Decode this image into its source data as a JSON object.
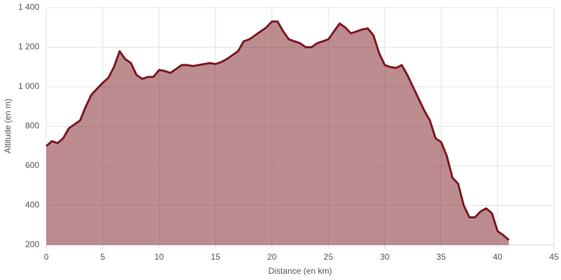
{
  "chart_data": {
    "type": "area",
    "x_label": "Distance (en km)",
    "y_label": "Altitude (en m)",
    "x": [
      0,
      0.5,
      1,
      1.5,
      2,
      2.5,
      3,
      3.5,
      4,
      4.5,
      5,
      5.5,
      6,
      6.5,
      7,
      7.5,
      8,
      8.5,
      9,
      9.5,
      10,
      10.5,
      11,
      11.5,
      12,
      12.5,
      13,
      13.5,
      14,
      14.5,
      15,
      15.5,
      16,
      16.5,
      17,
      17.5,
      18,
      18.5,
      19,
      19.5,
      20,
      20.5,
      21,
      21.5,
      22,
      22.5,
      23,
      23.5,
      24,
      24.5,
      25,
      25.5,
      26,
      26.5,
      27,
      27.5,
      28,
      28.5,
      29,
      29.5,
      30,
      30.5,
      31,
      31.5,
      32,
      32.5,
      33,
      33.5,
      34,
      34.5,
      35,
      35.5,
      36,
      36.5,
      37,
      37.5,
      38,
      38.5,
      39,
      39.5,
      40,
      40.5,
      41
    ],
    "series": [
      {
        "name": "Altitude",
        "color": "#7b1a22",
        "values": [
          700,
          725,
          715,
          740,
          790,
          810,
          830,
          900,
          960,
          990,
          1020,
          1045,
          1100,
          1180,
          1140,
          1120,
          1060,
          1040,
          1050,
          1050,
          1085,
          1080,
          1070,
          1090,
          1110,
          1110,
          1105,
          1110,
          1115,
          1120,
          1115,
          1125,
          1140,
          1160,
          1180,
          1230,
          1240,
          1260,
          1280,
          1300,
          1330,
          1330,
          1280,
          1240,
          1230,
          1220,
          1200,
          1200,
          1220,
          1230,
          1240,
          1280,
          1320,
          1300,
          1270,
          1280,
          1290,
          1295,
          1260,
          1170,
          1110,
          1100,
          1095,
          1110,
          1060,
          1000,
          940,
          880,
          830,
          740,
          720,
          650,
          540,
          510,
          400,
          340,
          340,
          370,
          385,
          360,
          270,
          250,
          225
        ]
      }
    ],
    "xlim": [
      0,
      45
    ],
    "xticks": [
      0,
      5,
      10,
      15,
      20,
      25,
      30,
      35,
      40,
      45
    ],
    "ylim": [
      200,
      1400
    ],
    "yticks": [
      200,
      400,
      600,
      800,
      {
        "value": 1000,
        "label": "1 000"
      },
      {
        "value": 1200,
        "label": "1 200"
      },
      {
        "value": 1400,
        "label": "1 400"
      }
    ],
    "grid": true
  }
}
